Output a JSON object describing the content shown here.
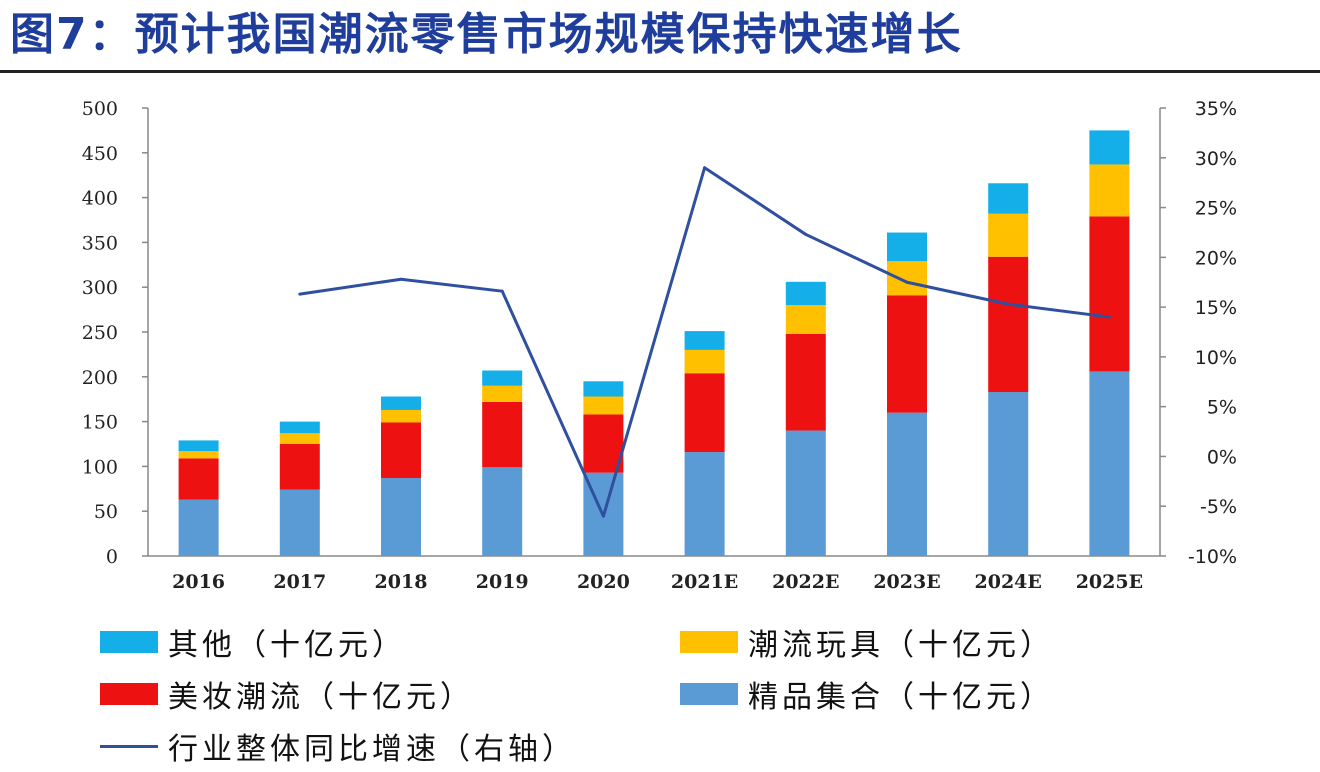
{
  "title": "图7：预计我国潮流零售市场规模保持快速增长",
  "chart_data": {
    "type": "bar",
    "stacked": true,
    "categories": [
      "2016",
      "2017",
      "2018",
      "2019",
      "2020",
      "2021E",
      "2022E",
      "2023E",
      "2024E",
      "2025E"
    ],
    "ylim": [
      0,
      500
    ],
    "yticks": [
      0,
      50,
      100,
      150,
      200,
      250,
      300,
      350,
      400,
      450,
      500
    ],
    "y2lim": [
      -10,
      35
    ],
    "y2ticks": [
      "-10%",
      "-5%",
      "0%",
      "5%",
      "10%",
      "15%",
      "20%",
      "25%",
      "30%",
      "35%"
    ],
    "series": [
      {
        "name": "精品集合（十亿元）",
        "color": "#5b9bd5",
        "values": [
          63,
          74,
          87,
          99,
          93,
          116,
          140,
          160,
          183,
          206
        ]
      },
      {
        "name": "美妆潮流（十亿元）",
        "color": "#ee1111",
        "values": [
          46,
          51,
          62,
          73,
          65,
          88,
          108,
          131,
          151,
          173
        ]
      },
      {
        "name": "潮流玩具（十亿元）",
        "color": "#ffc000",
        "values": [
          8,
          12,
          14,
          18,
          20,
          26,
          32,
          38,
          48,
          58
        ]
      },
      {
        "name": "其他（十亿元）",
        "color": "#14aee8",
        "values": [
          12,
          13,
          15,
          17,
          17,
          21,
          26,
          32,
          34,
          38
        ]
      }
    ],
    "line": {
      "name": "行业整体同比增速（右轴）",
      "color": "#2f4f9f",
      "axis": "right",
      "values": [
        null,
        16.3,
        17.8,
        16.6,
        -6.0,
        29.0,
        22.3,
        17.5,
        15.3,
        14.0
      ]
    },
    "grid": false
  },
  "legend": [
    {
      "label": "其他（十亿元）",
      "color": "#14aee8"
    },
    {
      "label": "潮流玩具（十亿元）",
      "color": "#ffc000"
    },
    {
      "label": "美妆潮流（十亿元）",
      "color": "#ee1111"
    },
    {
      "label": "精品集合（十亿元）",
      "color": "#5b9bd5"
    },
    {
      "label": "行业整体同比增速（右轴）",
      "color": "#2f4f9f"
    }
  ]
}
